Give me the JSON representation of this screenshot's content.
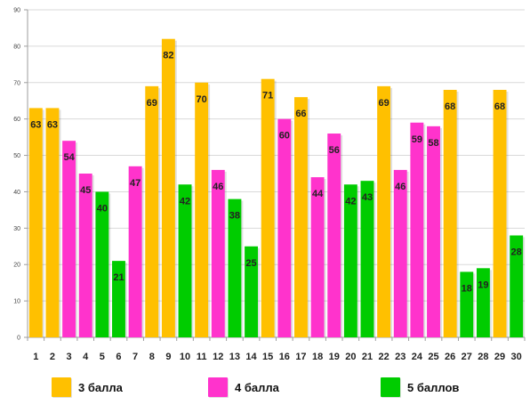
{
  "chart_data": {
    "type": "bar",
    "categories": [
      "1",
      "2",
      "3",
      "4",
      "5",
      "6",
      "7",
      "8",
      "9",
      "10",
      "11",
      "12",
      "13",
      "14",
      "15",
      "16",
      "17",
      "18",
      "19",
      "20",
      "21",
      "22",
      "23",
      "24",
      "25",
      "26",
      "27",
      "28",
      "29",
      "30"
    ],
    "values": [
      63,
      63,
      54,
      45,
      40,
      21,
      47,
      69,
      82,
      42,
      70,
      46,
      38,
      25,
      71,
      60,
      66,
      44,
      56,
      42,
      43,
      69,
      46,
      59,
      58,
      68,
      18,
      19,
      68,
      28
    ],
    "bar_groups": [
      "3 балла",
      "3 балла",
      "4 балла",
      "4 балла",
      "5 баллов",
      "5 баллов",
      "4 балла",
      "3 балла",
      "3 балла",
      "5 баллов",
      "3 балла",
      "4 балла",
      "5 баллов",
      "5 баллов",
      "3 балла",
      "4 балла",
      "3 балла",
      "4 балла",
      "4 балла",
      "5 баллов",
      "5 баллов",
      "3 балла",
      "4 балла",
      "4 балла",
      "4 балла",
      "3 балла",
      "5 баллов",
      "5 баллов",
      "3 балла",
      "5 баллов"
    ],
    "title": "",
    "xlabel": "",
    "ylabel": "",
    "ylim": [
      0,
      90
    ],
    "yticks": [
      "0",
      "10",
      "20",
      "30",
      "40",
      "50",
      "60",
      "70",
      "80",
      "90"
    ],
    "grid": true,
    "legend_position": "bottom",
    "legend": [
      {
        "label": "3 балла",
        "color": "#FFC000"
      },
      {
        "label": "4 балла",
        "color": "#FF33CC"
      },
      {
        "label": "5 баллов",
        "color": "#00CC00"
      }
    ],
    "colors": {
      "3 балла": "#FFC000",
      "4 балла": "#FF33CC",
      "5 баллов": "#00CC00"
    }
  }
}
